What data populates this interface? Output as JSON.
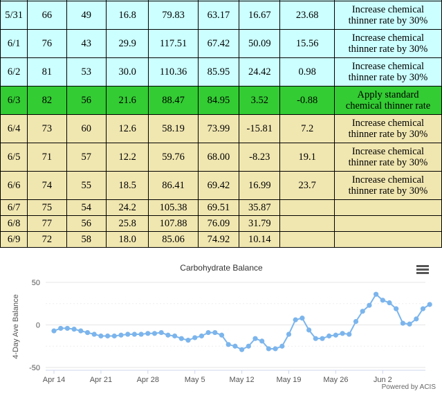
{
  "table": {
    "rows": [
      {
        "date": "5/31",
        "c1": "66",
        "c2": "49",
        "c3": "16.8",
        "c4": "79.83",
        "c5": "63.17",
        "c6": "16.67",
        "c7": "23.68",
        "action": [
          "Increase chemical",
          "thinner rate by 30%"
        ],
        "style": "cyan"
      },
      {
        "date": "6/1",
        "c1": "76",
        "c2": "43",
        "c3": "29.9",
        "c4": "117.51",
        "c5": "67.42",
        "c6": "50.09",
        "c7": "15.56",
        "action": [
          "Increase chemical",
          "thinner rate by 30%"
        ],
        "style": "cyan"
      },
      {
        "date": "6/2",
        "c1": "81",
        "c2": "53",
        "c3": "30.0",
        "c4": "110.36",
        "c5": "85.95",
        "c6": "24.42",
        "c7": "0.98",
        "action": [
          "Increase chemical",
          "thinner rate by 30%"
        ],
        "style": "cyan"
      },
      {
        "date": "6/3",
        "c1": "82",
        "c2": "56",
        "c3": "21.6",
        "c4": "88.47",
        "c5": "84.95",
        "c6": "3.52",
        "c7": "-0.88",
        "action": [
          "Apply standard",
          "chemical thinner rate"
        ],
        "style": "green"
      },
      {
        "date": "6/4",
        "c1": "73",
        "c2": "60",
        "c3": "12.6",
        "c4": "58.19",
        "c5": "73.99",
        "c6": "-15.81",
        "c7": "7.2",
        "action": [
          "Increase chemical",
          "thinner rate by 30%"
        ],
        "style": "tan"
      },
      {
        "date": "6/5",
        "c1": "71",
        "c2": "57",
        "c3": "12.2",
        "c4": "59.76",
        "c5": "68.00",
        "c6": "-8.23",
        "c7": "19.1",
        "action": [
          "Increase chemical",
          "thinner rate by 30%"
        ],
        "style": "tan"
      },
      {
        "date": "6/6",
        "c1": "74",
        "c2": "55",
        "c3": "18.5",
        "c4": "86.41",
        "c5": "69.42",
        "c6": "16.99",
        "c7": "23.7",
        "action": [
          "Increase chemical",
          "thinner rate by 30%"
        ],
        "style": "tan"
      },
      {
        "date": "6/7",
        "c1": "75",
        "c2": "54",
        "c3": "24.2",
        "c4": "105.38",
        "c5": "69.51",
        "c6": "35.87",
        "c7": "",
        "action": [],
        "style": "tan"
      },
      {
        "date": "6/8",
        "c1": "77",
        "c2": "56",
        "c3": "25.8",
        "c4": "107.88",
        "c5": "76.09",
        "c6": "31.79",
        "c7": "",
        "action": [],
        "style": "tan"
      },
      {
        "date": "6/9",
        "c1": "72",
        "c2": "58",
        "c3": "18.0",
        "c4": "85.06",
        "c5": "74.92",
        "c6": "10.14",
        "c7": "",
        "action": [],
        "style": "tan"
      }
    ]
  },
  "chart": {
    "menu_icon": "hamburger-menu-icon",
    "credit": "Powered by ACIS"
  },
  "chart_data": {
    "type": "line",
    "title": "Carbohydrate Balance",
    "ylabel": "4-Day Ave Balance",
    "xlabel": "",
    "ylim": [
      -50,
      50
    ],
    "yticks": [
      "50",
      "0",
      "-50"
    ],
    "xticks": [
      "Apr 14",
      "Apr 21",
      "Apr 28",
      "May 5",
      "May 12",
      "May 19",
      "May 26",
      "Jun 2"
    ],
    "x_start": "Apr 14",
    "series_color": "#7cb5ec",
    "y": [
      -7,
      -4,
      -4,
      -5,
      -7,
      -9,
      -11,
      -13,
      -13,
      -13,
      -12,
      -11,
      -11,
      -11,
      -10,
      -10,
      -9,
      -12,
      -13,
      -16,
      -18,
      -15,
      -13,
      -9,
      -9,
      -12,
      -23,
      -25,
      -29,
      -25,
      -16,
      -19,
      -28,
      -28,
      -25,
      -11,
      6,
      8,
      -6,
      -16,
      -16,
      -13,
      -12,
      -10,
      -11,
      4,
      16,
      23,
      36,
      29,
      26,
      19,
      2,
      1,
      7,
      19,
      24
    ]
  }
}
